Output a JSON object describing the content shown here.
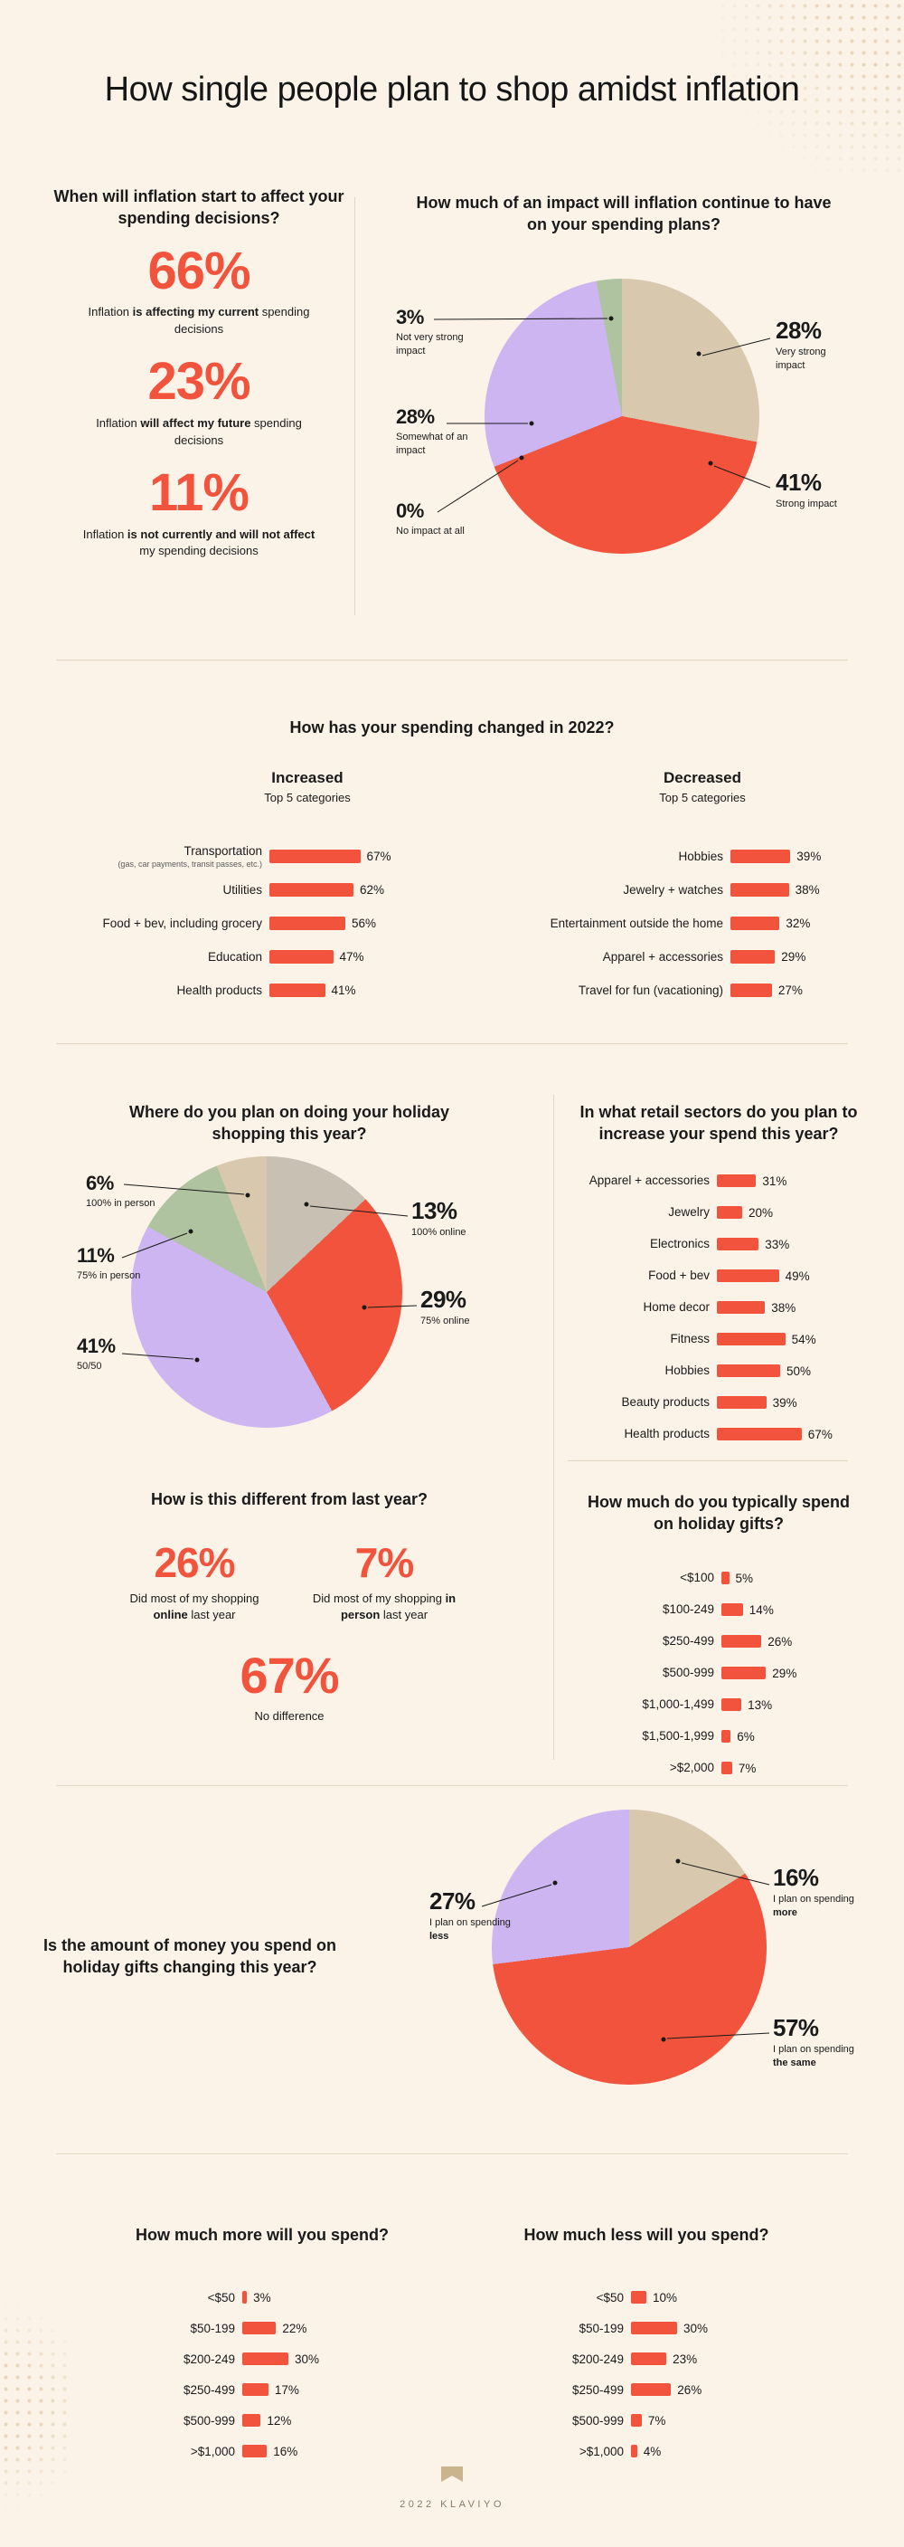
{
  "page": {
    "title": "How single people plan to shop amidst inflation",
    "footer_text": "2022 KLAVIYO"
  },
  "colors": {
    "background": "#FBF3E8",
    "accent_red": "#F2533C",
    "purple": "#CDB5F1",
    "tan": "#D7C8AE",
    "gray": "#C8C0B2",
    "green": "#AFC3A0",
    "divider": "#E3D6C3",
    "text": "#1A1A1A"
  },
  "sections": {
    "inflation_timing": {
      "question": "When will inflation start to affect your spending decisions?",
      "stats": [
        {
          "value": 66,
          "pre": "Inflation ",
          "bold": "is affecting my current",
          "post": " spending decisions"
        },
        {
          "value": 23,
          "pre": "Inflation ",
          "bold": "will affect my future",
          "post": " spending decisions"
        },
        {
          "value": 11,
          "pre": "Inflation ",
          "bold": "is not currently and will not affect",
          "post": " my spending decisions"
        }
      ]
    },
    "spending_change": {
      "question": "How has your spending changed in 2022?"
    },
    "different_last_year": {
      "question": "How is this different from last year?",
      "stats": [
        {
          "value": 26,
          "pre": "Did most of my shopping ",
          "bold": "online",
          "post": " last year"
        },
        {
          "value": 7,
          "pre": "Did most of my shopping ",
          "bold": "in person",
          "post": " last year"
        },
        {
          "value": 67,
          "pre": "No difference",
          "bold": "",
          "post": ""
        }
      ]
    }
  },
  "chart_data": [
    {
      "name": "inflation_impact",
      "type": "pie",
      "unit": "%",
      "title": "How much of an impact will inflation continue to have on your spending plans?",
      "slices": [
        {
          "label": "Very strong impact",
          "value": 28,
          "color": "#D7C8AE"
        },
        {
          "label": "Strong impact",
          "value": 41,
          "color": "#F2533C"
        },
        {
          "label": "No impact at all",
          "value": 0,
          "color": "#C8C0B2"
        },
        {
          "label": "Somewhat of an impact",
          "value": 28,
          "color": "#CDB5F1"
        },
        {
          "label": "Not very strong impact",
          "value": 3,
          "color": "#AFC3A0"
        }
      ]
    },
    {
      "name": "spending_increased_2022",
      "type": "bar",
      "unit": "%",
      "title": "Increased",
      "subtitle": "Top 5 categories",
      "categories": [
        "Transportation",
        "Utilities",
        "Food + bev, including grocery",
        "Education",
        "Health products"
      ],
      "category_notes": [
        "(gas, car payments, transit passes, etc.)",
        "",
        "",
        "",
        ""
      ],
      "values": [
        67,
        62,
        56,
        47,
        41
      ]
    },
    {
      "name": "spending_decreased_2022",
      "type": "bar",
      "unit": "%",
      "title": "Decreased",
      "subtitle": "Top 5 categories",
      "categories": [
        "Hobbies",
        "Jewelry + watches",
        "Entertainment outside the home",
        "Apparel + accessories",
        "Travel for fun (vacationing)"
      ],
      "values": [
        39,
        38,
        32,
        29,
        27
      ]
    },
    {
      "name": "holiday_shopping_location",
      "type": "pie",
      "unit": "%",
      "title": "Where do you plan on doing your holiday shopping this year?",
      "slices": [
        {
          "label": "100% online",
          "value": 13,
          "color": "#C8C0B2"
        },
        {
          "label": "75% online",
          "value": 29,
          "color": "#F2533C"
        },
        {
          "label": "50/50",
          "value": 41,
          "color": "#CDB5F1"
        },
        {
          "label": "75% in person",
          "value": 11,
          "color": "#AFC3A0"
        },
        {
          "label": "100% in person",
          "value": 6,
          "color": "#D7C8AE"
        }
      ]
    },
    {
      "name": "retail_sector_spend_increase",
      "type": "bar",
      "unit": "%",
      "title": "In what retail sectors do you plan to increase your spend this year?",
      "categories": [
        "Apparel + accessories",
        "Jewelry",
        "Electronics",
        "Food + bev",
        "Home decor",
        "Fitness",
        "Hobbies",
        "Beauty products",
        "Health products"
      ],
      "values": [
        31,
        20,
        33,
        49,
        38,
        54,
        50,
        39,
        67
      ]
    },
    {
      "name": "typical_holiday_gift_spend",
      "type": "bar",
      "unit": "%",
      "title": "How much do you typically spend on holiday gifts?",
      "categories": [
        "<$100",
        "$100-249",
        "$250-499",
        "$500-999",
        "$1,000-1,499",
        "$1,500-1,999",
        ">$2,000"
      ],
      "values": [
        5,
        14,
        26,
        29,
        13,
        6,
        7
      ]
    },
    {
      "name": "gift_spend_change",
      "type": "pie",
      "unit": "%",
      "title": "Is the amount of money you spend on holiday gifts changing this year?",
      "slices": [
        {
          "label": "I plan on spending more",
          "pre": "I plan on spending ",
          "bold": "more",
          "value": 16,
          "color": "#D7C8AE"
        },
        {
          "label": "I plan on spending the same",
          "pre": "I plan on spending ",
          "bold": "the same",
          "value": 57,
          "color": "#F2533C"
        },
        {
          "label": "I plan on spending less",
          "pre": "I plan on spending ",
          "bold": "less",
          "value": 27,
          "color": "#CDB5F1"
        }
      ]
    },
    {
      "name": "spend_more_amount",
      "type": "bar",
      "unit": "%",
      "title": "How much more will you spend?",
      "categories": [
        "<$50",
        "$50-199",
        "$200-249",
        "$250-499",
        "$500-999",
        ">$1,000"
      ],
      "values": [
        3,
        22,
        30,
        17,
        12,
        16
      ]
    },
    {
      "name": "spend_less_amount",
      "type": "bar",
      "unit": "%",
      "title": "How much less will you spend?",
      "categories": [
        "<$50",
        "$50-199",
        "$200-249",
        "$250-499",
        "$500-999",
        ">$1,000"
      ],
      "values": [
        10,
        30,
        23,
        26,
        7,
        4
      ]
    }
  ]
}
